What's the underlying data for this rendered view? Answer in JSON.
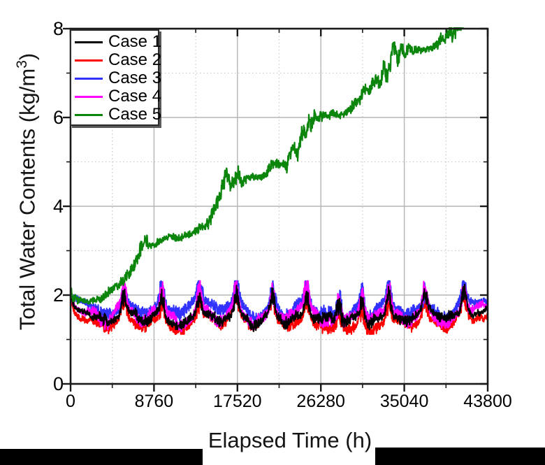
{
  "figure": {
    "background": "#ffffff"
  },
  "chart_data": {
    "type": "line",
    "title": "",
    "xlabel": "Elapsed Time (h)",
    "ylabel": "Total Water Contents (kg/m³)",
    "ylabel_prefix": "Total Water Contents (kg/m",
    "ylabel_sup": "3",
    "ylabel_suffix": ")",
    "xlim": [
      0,
      43800
    ],
    "ylim": [
      0,
      8
    ],
    "x_major_ticks": [
      0,
      8760,
      17520,
      26280,
      35040,
      43800
    ],
    "x_minor_ticks": [
      4380,
      13140,
      21900,
      30660,
      39420
    ],
    "y_major_ticks": [
      0,
      2,
      4,
      6,
      8
    ],
    "y_minor_ticks": [
      1,
      3,
      5,
      7
    ],
    "grid": {
      "major_color": "#b5b5b5",
      "minor_color": "#c9c9c9",
      "major_on": true,
      "minor_on": true
    },
    "axis_color": "#1a1a1a",
    "legend": {
      "position": "top-left",
      "entries": [
        "Case 1",
        "Case 2",
        "Case 3",
        "Case 4",
        "Case 5"
      ]
    },
    "events": {
      "times": [
        5600,
        9600,
        13500,
        17400,
        21200,
        24800,
        28200,
        30600,
        33400,
        37200,
        41300
      ],
      "spike_width": 230,
      "dip_offset": -1900,
      "dip_width": 800
    },
    "series": [
      {
        "name": "Case 1",
        "color": "#000000",
        "style": "noisy-flat",
        "approx_range": [
          1.35,
          2.15
        ],
        "gen": {
          "base": 1.6,
          "amp_year": 0.04,
          "phase_year": 2.1,
          "amp_fast": 0.03,
          "phase_fast": 0.8,
          "noise": 0.05,
          "spike_up": 0.4,
          "dip_down": 0.18,
          "vol_boost": 2.2,
          "start_value": 1.97,
          "seed": 11
        }
      },
      {
        "name": "Case 2",
        "color": "#ff0000",
        "style": "noisy-flat",
        "approx_range": [
          1.15,
          2.05
        ],
        "gen": {
          "base": 1.5,
          "amp_year": 0.04,
          "phase_year": 2.4,
          "amp_fast": 0.04,
          "phase_fast": 1.7,
          "noise": 0.055,
          "spike_up": 0.38,
          "dip_down": 0.24,
          "vol_boost": 2.2,
          "start_value": 1.95,
          "seed": 22
        }
      },
      {
        "name": "Case 3",
        "color": "#3232ff",
        "style": "noisy-flat",
        "approx_range": [
          1.45,
          2.3
        ],
        "gen": {
          "base": 1.8,
          "amp_year": 0.05,
          "phase_year": 2.7,
          "amp_fast": 0.04,
          "phase_fast": 0.2,
          "noise": 0.065,
          "spike_up": 0.42,
          "dip_down": 0.26,
          "vol_boost": 2.0,
          "start_value": 2.0,
          "seed": 33
        }
      },
      {
        "name": "Case 4",
        "color": "#ff00ff",
        "style": "noisy-flat",
        "approx_range": [
          1.3,
          2.3
        ],
        "gen": {
          "base": 1.7,
          "amp_year": 0.05,
          "phase_year": 3.0,
          "amp_fast": 0.04,
          "phase_fast": 2.5,
          "noise": 0.06,
          "spike_up": 0.48,
          "dip_down": 0.3,
          "vol_boost": 2.3,
          "start_value": 1.97,
          "seed": 44
        }
      },
      {
        "name": "Case 5",
        "color": "#0c850c",
        "style": "rising-staircase",
        "gen": {
          "noise": 0.045,
          "seed": 55
        },
        "waypoints": [
          [
            0,
            2.05
          ],
          [
            300,
            1.95
          ],
          [
            900,
            1.88
          ],
          [
            1600,
            1.86
          ],
          [
            2400,
            1.88
          ],
          [
            3100,
            1.92
          ],
          [
            3600,
            2.0
          ],
          [
            4300,
            2.12
          ],
          [
            4800,
            2.2
          ],
          [
            5500,
            2.32
          ],
          [
            6200,
            2.5
          ],
          [
            6800,
            2.72
          ],
          [
            7200,
            2.95
          ],
          [
            7600,
            3.18
          ],
          [
            7900,
            3.25
          ],
          [
            8300,
            3.12
          ],
          [
            8800,
            3.1
          ],
          [
            9300,
            3.22
          ],
          [
            9900,
            3.28
          ],
          [
            10600,
            3.32
          ],
          [
            11300,
            3.26
          ],
          [
            12000,
            3.33
          ],
          [
            12700,
            3.38
          ],
          [
            13500,
            3.5
          ],
          [
            14300,
            3.58
          ],
          [
            14800,
            3.8
          ],
          [
            15200,
            3.95
          ],
          [
            15700,
            4.28
          ],
          [
            16100,
            4.55
          ],
          [
            16400,
            4.78
          ],
          [
            16750,
            4.4
          ],
          [
            17200,
            4.58
          ],
          [
            17600,
            4.75
          ],
          [
            18000,
            4.53
          ],
          [
            18500,
            4.62
          ],
          [
            19100,
            4.67
          ],
          [
            19800,
            4.64
          ],
          [
            20500,
            4.72
          ],
          [
            21000,
            4.9
          ],
          [
            21500,
            5.0
          ],
          [
            21900,
            4.93
          ],
          [
            22300,
            4.96
          ],
          [
            22700,
            4.9
          ],
          [
            23100,
            5.25
          ],
          [
            23500,
            5.32
          ],
          [
            23800,
            5.16
          ],
          [
            24100,
            5.45
          ],
          [
            24400,
            5.75
          ],
          [
            24700,
            5.6
          ],
          [
            25000,
            5.95
          ],
          [
            25300,
            5.8
          ],
          [
            25600,
            6.02
          ],
          [
            26000,
            5.94
          ],
          [
            26500,
            6.08
          ],
          [
            27000,
            6.03
          ],
          [
            27500,
            6.1
          ],
          [
            28100,
            6.04
          ],
          [
            28700,
            6.08
          ],
          [
            29300,
            6.14
          ],
          [
            29800,
            6.32
          ],
          [
            30300,
            6.42
          ],
          [
            30700,
            6.55
          ],
          [
            31000,
            6.63
          ],
          [
            31400,
            6.58
          ],
          [
            31700,
            6.77
          ],
          [
            32100,
            6.86
          ],
          [
            32500,
            6.72
          ],
          [
            32900,
            7.12
          ],
          [
            33200,
            6.94
          ],
          [
            33600,
            7.25
          ],
          [
            33900,
            7.65
          ],
          [
            34150,
            7.45
          ],
          [
            34400,
            7.28
          ],
          [
            34700,
            7.58
          ],
          [
            35100,
            7.45
          ],
          [
            35500,
            7.55
          ],
          [
            35900,
            7.48
          ],
          [
            36400,
            7.54
          ],
          [
            36900,
            7.5
          ],
          [
            37400,
            7.51
          ],
          [
            37900,
            7.57
          ],
          [
            38400,
            7.64
          ],
          [
            38900,
            7.78
          ],
          [
            39200,
            7.72
          ],
          [
            39600,
            7.86
          ],
          [
            39900,
            7.95
          ],
          [
            40150,
            7.84
          ],
          [
            40500,
            8.0
          ],
          [
            40900,
            8.05
          ],
          [
            41250,
            8.12
          ],
          [
            41600,
            8.2
          ]
        ]
      }
    ]
  },
  "redactions": {
    "left_bar": true,
    "right_bar": true
  }
}
